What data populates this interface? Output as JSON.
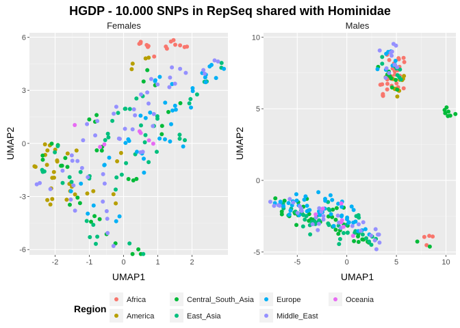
{
  "figure": {
    "title": "HGDP - 10.000 SNPs in RepSeq shared with Hominidae"
  },
  "legend": {
    "title": "Region",
    "placement": "bottom",
    "entries": [
      {
        "name": "Africa",
        "color": "#F8766D"
      },
      {
        "name": "America",
        "color": "#B79F00"
      },
      {
        "name": "Central_South_Asia",
        "color": "#00BA38"
      },
      {
        "name": "East_Asia",
        "color": "#00BF7D"
      },
      {
        "name": "Europe",
        "color": "#00B0F6"
      },
      {
        "name": "Middle_East",
        "color": "#9590FF"
      },
      {
        "name": "Oceania",
        "color": "#E76BF3"
      }
    ]
  },
  "chart_data": [
    {
      "type": "scatter",
      "title": "Females",
      "xlabel": "UMAP1",
      "ylabel": "UMAP2",
      "xlim": [
        -2.75,
        3.05
      ],
      "ylim": [
        -6.3,
        6.25
      ],
      "xticks": [
        -2,
        -1,
        0,
        1,
        2
      ],
      "yticks": [
        -6,
        -3,
        0,
        3,
        6
      ],
      "grid": true,
      "groups": [
        {
          "name": "Africa",
          "centers": [
            [
              0.5,
              5.6
            ],
            [
              0.7,
              5.5
            ],
            [
              1.2,
              5.3
            ],
            [
              1.6,
              5.5
            ],
            [
              1.8,
              5.4
            ],
            [
              0.9,
              5.1
            ],
            [
              1.4,
              5.6
            ]
          ],
          "n": [
            3,
            3,
            2,
            2,
            2,
            1,
            2
          ],
          "sd": [
            0.06,
            0.12
          ]
        },
        {
          "name": "America",
          "centers": [
            [
              -2.3,
              -0.6
            ],
            [
              -2.1,
              -2.0
            ],
            [
              -2.1,
              -3.2
            ],
            [
              -1.9,
              -1.0
            ],
            [
              -1.6,
              -2.6
            ],
            [
              -1.5,
              -0.5
            ],
            [
              -2.5,
              -1.4
            ],
            [
              -1.3,
              -3.0
            ],
            [
              -1.0,
              -2.3
            ],
            [
              -0.2,
              -0.8
            ],
            [
              -0.3,
              -3.2
            ],
            [
              0.6,
              4.9
            ],
            [
              0.3,
              3.9
            ]
          ],
          "n": [
            4,
            3,
            4,
            3,
            3,
            2,
            3,
            2,
            2,
            2,
            2,
            2,
            2
          ],
          "sd": [
            0.13,
            0.35
          ]
        },
        {
          "name": "Central_South_Asia",
          "centers": [
            [
              -2.2,
              -0.4
            ],
            [
              -1.8,
              -1.6
            ],
            [
              -1.3,
              -3.5
            ],
            [
              -0.8,
              -4.2
            ],
            [
              -0.9,
              -0.4
            ],
            [
              -0.5,
              -5.8
            ],
            [
              0.3,
              -6.1
            ],
            [
              0.2,
              -2.0
            ],
            [
              0.7,
              3.3
            ],
            [
              1.1,
              0.8
            ],
            [
              -0.7,
              1.5
            ],
            [
              1.4,
              2.0
            ]
          ],
          "n": [
            4,
            4,
            3,
            3,
            3,
            2,
            3,
            3,
            3,
            2,
            3,
            2
          ],
          "sd": [
            0.13,
            0.35
          ]
        },
        {
          "name": "East_Asia",
          "centers": [
            [
              -2.3,
              -1.6
            ],
            [
              -2.0,
              -0.6
            ],
            [
              -1.6,
              -2.0
            ],
            [
              -1.2,
              -1.6
            ],
            [
              -1.0,
              -4.6
            ],
            [
              -0.7,
              -5.3
            ],
            [
              -0.2,
              -2.1
            ],
            [
              0.2,
              -5.9
            ],
            [
              -0.5,
              0.2
            ],
            [
              0.1,
              2.2
            ],
            [
              0.6,
              0.6
            ],
            [
              1.0,
              1.6
            ],
            [
              0.9,
              -0.6
            ],
            [
              1.6,
              0.0
            ],
            [
              2.1,
              2.6
            ],
            [
              2.4,
              3.7
            ],
            [
              2.7,
              4.6
            ],
            [
              0.3,
              -1.1
            ],
            [
              -0.3,
              1.4
            ],
            [
              0.4,
              2.8
            ]
          ],
          "n": [
            3,
            2,
            3,
            3,
            3,
            2,
            3,
            2,
            3,
            3,
            3,
            3,
            2,
            3,
            3,
            2,
            2,
            2,
            2,
            2
          ],
          "sd": [
            0.13,
            0.35
          ]
        },
        {
          "name": "Europe",
          "centers": [
            [
              -1.4,
              -2.4
            ],
            [
              -1.0,
              -3.6
            ],
            [
              -0.4,
              -1.0
            ],
            [
              0.2,
              0.2
            ],
            [
              0.6,
              1.8
            ],
            [
              0.8,
              3.6
            ],
            [
              1.3,
              2.6
            ],
            [
              1.6,
              1.6
            ],
            [
              2.0,
              2.4
            ],
            [
              2.3,
              3.3
            ],
            [
              2.6,
              4.1
            ],
            [
              1.5,
              -0.4
            ],
            [
              1.1,
              0.6
            ],
            [
              0.4,
              -0.8
            ],
            [
              -0.2,
              -4.0
            ],
            [
              2.8,
              4.5
            ],
            [
              0.7,
              -1.5
            ]
          ],
          "n": [
            2,
            2,
            3,
            3,
            3,
            3,
            3,
            3,
            3,
            3,
            3,
            2,
            2,
            2,
            2,
            2,
            2
          ],
          "sd": [
            0.13,
            0.35
          ]
        },
        {
          "name": "Middle_East",
          "centers": [
            [
              -2.5,
              -2.0
            ],
            [
              -1.8,
              -2.2
            ],
            [
              -1.5,
              -1.0
            ],
            [
              -1.2,
              0.8
            ],
            [
              -0.6,
              -2.4
            ],
            [
              -0.4,
              -4.4
            ],
            [
              -0.1,
              0.4
            ],
            [
              0.2,
              1.4
            ],
            [
              0.6,
              2.4
            ],
            [
              1.0,
              3.4
            ],
            [
              1.4,
              4.2
            ],
            [
              1.8,
              3.8
            ],
            [
              2.2,
              4.2
            ],
            [
              0.9,
              1.0
            ],
            [
              -0.8,
              0.6
            ],
            [
              -0.3,
              2.0
            ],
            [
              0.5,
              -0.2
            ],
            [
              -1.1,
              -1.4
            ],
            [
              2.8,
              4.6
            ],
            [
              -0.4,
              -5.6
            ],
            [
              -1.4,
              -3.3
            ]
          ],
          "n": [
            2,
            3,
            3,
            2,
            3,
            2,
            3,
            3,
            3,
            3,
            3,
            2,
            2,
            2,
            2,
            2,
            2,
            2,
            2,
            2,
            2
          ],
          "sd": [
            0.13,
            0.35
          ]
        },
        {
          "name": "Oceania",
          "centers": [
            [
              -0.6,
              0.0
            ],
            [
              0.4,
              0.6
            ],
            [
              0.8,
              0.0
            ],
            [
              -1.4,
              1.3
            ]
          ],
          "n": [
            2,
            2,
            2,
            1
          ],
          "sd": [
            0.1,
            0.2
          ]
        }
      ]
    },
    {
      "type": "scatter",
      "title": "Males",
      "xlabel": "UMAP1",
      "ylabel": "UMAP2",
      "xlim": [
        -8.4,
        11.0
      ],
      "ylim": [
        -5.2,
        10.3
      ],
      "xticks": [
        -5,
        0,
        5,
        10
      ],
      "yticks": [
        -5,
        0,
        5,
        10
      ],
      "grid": true,
      "groups": [
        {
          "name": "Africa",
          "centers": [
            [
              4.6,
              7.5
            ],
            [
              4.0,
              6.6
            ],
            [
              5.0,
              8.1
            ],
            [
              3.6,
              6.2
            ],
            [
              5.3,
              6.6
            ],
            [
              4.3,
              8.6
            ],
            [
              8.4,
              -4.1
            ],
            [
              4.8,
              7.1
            ],
            [
              5.5,
              7.6
            ]
          ],
          "n": [
            6,
            4,
            4,
            3,
            4,
            3,
            4,
            4,
            3
          ],
          "sd": [
            0.3,
            0.3
          ]
        },
        {
          "name": "America",
          "centers": [
            [
              4.2,
              7.2
            ],
            [
              5.5,
              7.0
            ],
            [
              4.8,
              6.2
            ],
            [
              6.0,
              7.2
            ]
          ],
          "n": [
            3,
            3,
            3,
            2
          ],
          "sd": [
            0.35,
            0.3
          ]
        },
        {
          "name": "Central_South_Asia",
          "centers": [
            [
              -6.5,
              -1.8
            ],
            [
              -5.0,
              -2.3
            ],
            [
              -3.5,
              -2.6
            ],
            [
              -2.0,
              -3.0
            ],
            [
              -0.5,
              -3.4
            ],
            [
              1.0,
              -3.8
            ],
            [
              2.0,
              -4.0
            ],
            [
              4.0,
              7.5
            ],
            [
              4.8,
              6.8
            ],
            [
              10.2,
              4.7
            ],
            [
              10.1,
              4.8
            ],
            [
              8.0,
              -4.2
            ],
            [
              -4.0,
              -1.7
            ],
            [
              -1.0,
              -2.0
            ],
            [
              -6.0,
              -2.6
            ]
          ],
          "n": [
            4,
            5,
            5,
            5,
            5,
            4,
            4,
            4,
            4,
            4,
            3,
            2,
            3,
            3,
            3
          ],
          "sd": [
            0.45,
            0.25
          ]
        },
        {
          "name": "East_Asia",
          "centers": [
            [
              -6.0,
              -2.0
            ],
            [
              -4.5,
              -2.4
            ],
            [
              -3.0,
              -3.0
            ],
            [
              -1.5,
              -3.2
            ],
            [
              0.0,
              -3.5
            ],
            [
              1.5,
              -3.8
            ],
            [
              2.5,
              -4.2
            ],
            [
              -2.0,
              -1.8
            ],
            [
              1.0,
              -2.7
            ],
            [
              4.5,
              7.8
            ],
            [
              3.6,
              8.6
            ],
            [
              5.2,
              7.3
            ],
            [
              -4.0,
              -3.3
            ],
            [
              -0.3,
              -4.3
            ]
          ],
          "n": [
            5,
            5,
            5,
            5,
            5,
            5,
            3,
            3,
            3,
            3,
            2,
            3,
            3,
            2
          ],
          "sd": [
            0.45,
            0.25
          ]
        },
        {
          "name": "Europe",
          "centers": [
            [
              -6.8,
              -1.4
            ],
            [
              -5.5,
              -1.8
            ],
            [
              -4.0,
              -2.0
            ],
            [
              -2.5,
              -2.3
            ],
            [
              -1.0,
              -2.6
            ],
            [
              0.5,
              -3.0
            ],
            [
              1.5,
              -3.5
            ],
            [
              -3.5,
              -1.3
            ],
            [
              -0.5,
              -1.6
            ],
            [
              4.2,
              9.0
            ],
            [
              4.6,
              8.3
            ],
            [
              3.7,
              7.8
            ],
            [
              -5.0,
              -1.2
            ],
            [
              -2.0,
              -1.0
            ],
            [
              1.2,
              -2.0
            ]
          ],
          "n": [
            5,
            5,
            5,
            5,
            5,
            5,
            4,
            3,
            3,
            3,
            3,
            2,
            3,
            3,
            2
          ],
          "sd": [
            0.45,
            0.25
          ]
        },
        {
          "name": "Middle_East",
          "centers": [
            [
              -7.0,
              -1.8
            ],
            [
              -5.0,
              -2.0
            ],
            [
              -3.0,
              -2.4
            ],
            [
              -1.0,
              -2.8
            ],
            [
              1.0,
              -3.2
            ],
            [
              2.5,
              -3.6
            ],
            [
              3.0,
              -4.4
            ],
            [
              4.2,
              9.3
            ],
            [
              4.6,
              8.7
            ],
            [
              5.0,
              7.9
            ],
            [
              3.8,
              7.4
            ],
            [
              -6.0,
              -1.3
            ],
            [
              -2.5,
              -3.4
            ]
          ],
          "n": [
            4,
            4,
            4,
            4,
            4,
            4,
            3,
            3,
            3,
            3,
            2,
            2,
            3
          ],
          "sd": [
            0.45,
            0.25
          ]
        },
        {
          "name": "Oceania",
          "centers": [
            [
              -0.8,
              -3.0
            ],
            [
              0.3,
              -3.6
            ],
            [
              -2.5,
              -2.2
            ],
            [
              -0.3,
              -1.6
            ]
          ],
          "n": [
            2,
            2,
            2,
            1
          ],
          "sd": [
            0.3,
            0.2
          ]
        }
      ]
    }
  ]
}
